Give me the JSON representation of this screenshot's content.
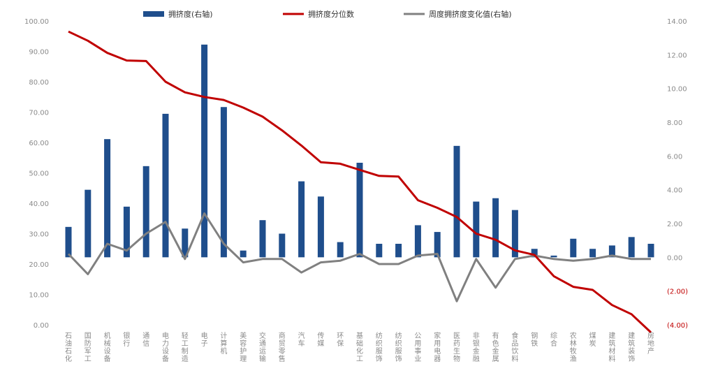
{
  "chart_data": {
    "type": "bar",
    "title": "",
    "legend": [
      {
        "label": "拥挤度(右轴)",
        "kind": "bar",
        "color": "#1f4e8c"
      },
      {
        "label": "拥挤度分位数",
        "kind": "line",
        "color": "#c00000"
      },
      {
        "label": "周度拥挤度变化值(右轴)",
        "kind": "line",
        "color": "#808080"
      }
    ],
    "legend_position": "top",
    "left_axis": {
      "ylim": [
        0,
        100
      ],
      "ticks": [
        0,
        10,
        20,
        30,
        40,
        50,
        60,
        70,
        80,
        90,
        100
      ],
      "tick_labels": [
        "0.00",
        "10.00",
        "20.00",
        "30.00",
        "40.00",
        "50.00",
        "60.00",
        "70.00",
        "80.00",
        "90.00",
        "100.00"
      ]
    },
    "right_axis": {
      "ylim": [
        -4,
        14
      ],
      "ticks": [
        -4,
        -2,
        0,
        2,
        4,
        6,
        8,
        10,
        12,
        14
      ],
      "tick_labels": [
        "(4.00)",
        "(2.00)",
        "0.00",
        "2.00",
        "4.00",
        "6.00",
        "8.00",
        "10.00",
        "12.00",
        "14.00"
      ]
    },
    "categories": [
      "石油石化",
      "国防军工",
      "机械设备",
      "银行",
      "通信",
      "电力设备",
      "轻工制造",
      "电子",
      "计算机",
      "美容护理",
      "交通运输",
      "商贸零售",
      "汽车",
      "传媒",
      "环保",
      "基础化工",
      "纺织服饰",
      "纺织服饰",
      "公用事业",
      "家用电器",
      "医药生物",
      "非银金融",
      "有色金属",
      "食品饮料",
      "钢铁",
      "综合",
      "农林牧渔",
      "煤炭",
      "建筑材料",
      "建筑装饰",
      "房地产"
    ],
    "series": [
      {
        "name": "拥挤度(右轴)",
        "type": "bar",
        "axis": "right",
        "values": [
          1.8,
          4.0,
          7.0,
          3.0,
          5.4,
          8.5,
          1.7,
          12.6,
          8.9,
          0.4,
          2.2,
          1.4,
          4.5,
          3.6,
          0.9,
          5.6,
          0.8,
          0.8,
          1.9,
          1.5,
          6.6,
          3.3,
          3.5,
          2.8,
          0.5,
          0.1,
          1.1,
          0.5,
          0.7,
          1.2,
          0.8
        ]
      },
      {
        "name": "拥挤度分位数",
        "type": "line",
        "axis": "left",
        "values": [
          96.5,
          93.5,
          89.5,
          87.0,
          86.8,
          80.0,
          76.5,
          75.0,
          74.0,
          71.5,
          68.5,
          64.0,
          59.0,
          53.5,
          53.0,
          51.0,
          49.0,
          48.8,
          41.0,
          38.5,
          35.5,
          30.0,
          28.0,
          24.5,
          23.0,
          16.0,
          12.5,
          11.5,
          6.5,
          3.5,
          -2.5
        ]
      },
      {
        "name": "周度拥挤度变化值(右轴)",
        "type": "line",
        "axis": "right",
        "values": [
          0.2,
          -1.0,
          0.8,
          0.4,
          1.4,
          2.1,
          -0.1,
          2.6,
          0.8,
          -0.3,
          -0.1,
          -0.1,
          -0.9,
          -0.3,
          -0.2,
          0.2,
          -0.4,
          -0.4,
          0.1,
          0.2,
          -2.6,
          -0.1,
          -1.8,
          -0.1,
          0.1,
          -0.1,
          -0.2,
          -0.1,
          0.1,
          -0.1,
          -0.1
        ]
      }
    ],
    "grid": false
  }
}
